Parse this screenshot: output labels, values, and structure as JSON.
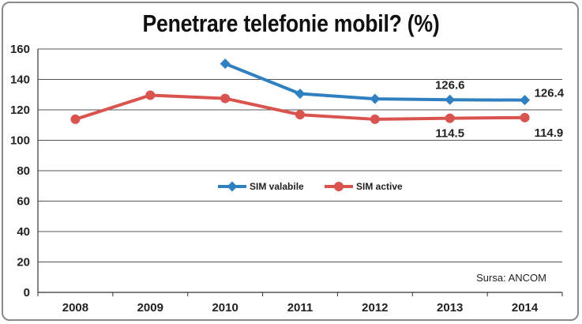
{
  "chart_data": {
    "type": "line",
    "title": "Penetrare telefonie mobil? (%)",
    "categories": [
      "2008",
      "2009",
      "2010",
      "2011",
      "2012",
      "2013",
      "2014"
    ],
    "ylim": [
      0,
      160
    ],
    "yticks": [
      0,
      20,
      40,
      60,
      80,
      100,
      120,
      140,
      160
    ],
    "grid": true,
    "legend_position": "center",
    "series": [
      {
        "name": "SIM valabile",
        "color": "#2f7fc1",
        "marker": "diamond",
        "values": [
          null,
          null,
          150.3,
          130.6,
          127.2,
          126.6,
          126.4
        ],
        "labels": {
          "5": "126.6",
          "6": "126.4"
        }
      },
      {
        "name": "SIM active",
        "color": "#d9534f",
        "marker": "circle",
        "values": [
          113.8,
          129.6,
          127.5,
          116.8,
          113.8,
          114.5,
          114.9
        ],
        "labels": {
          "5": "114.5",
          "6": "114.9"
        }
      }
    ],
    "source": "Sursa: ANCOM"
  }
}
